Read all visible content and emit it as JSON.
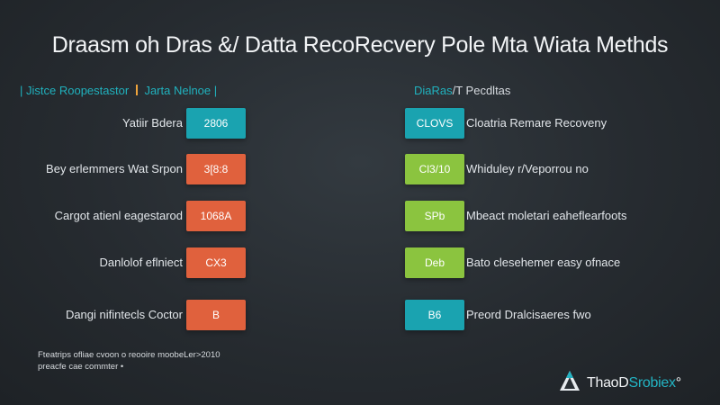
{
  "title": "Draasm oh Dras &/ Datta RecoRecvery Pole Mta Wiata Methds",
  "left_section": {
    "prefix": "|",
    "title": "Jistce Roopestastor",
    "suffix": "Jarta Nelnoe |"
  },
  "right_section": {
    "title_hl": "DiaRas",
    "title": "/T Pecdltas"
  },
  "rows": [
    {
      "left_label": "Yatiir Bdera",
      "left_code": "2806",
      "left_color": "#1aa3b0",
      "right_code": "CLOVS",
      "right_color": "#1aa3b0",
      "right_label": "Cloatria Remare Recoveny"
    },
    {
      "left_label": "Bey erlemmers Wat Srpon",
      "left_code": "3[8:8",
      "left_color": "#e0613d",
      "right_code": "Cl3/10",
      "right_color": "#8bc43f",
      "right_label": "Whiduley r/Veporrou no"
    },
    {
      "left_label": "Cargot atienl eagestarod",
      "left_code": "1068A",
      "left_color": "#e0613d",
      "right_code": "SPb",
      "right_color": "#8bc43f",
      "right_label": "Mbeact moletari eaheflearfoots"
    },
    {
      "left_label": "Danlolof eflniect",
      "left_code": "CX3",
      "left_color": "#e0613d",
      "right_code": "Deb",
      "right_color": "#8bc43f",
      "right_label": "Bato clesehemer easy ofnace"
    },
    {
      "left_label": "Dangi nifintecls Coctor",
      "left_code": "B",
      "left_color": "#e0613d",
      "right_code": "B6",
      "right_color": "#1aa3b0",
      "right_label": "Preord Dralcisaeres fwo"
    }
  ],
  "footnote": [
    "Fteatrips ofliae cvoon o reooire moobeLer>2010",
    "preacfe cae commter •"
  ],
  "brand": {
    "name_prefix": "ThaoD",
    "name_hl": "Srobiex",
    "name_suffix": "°"
  }
}
